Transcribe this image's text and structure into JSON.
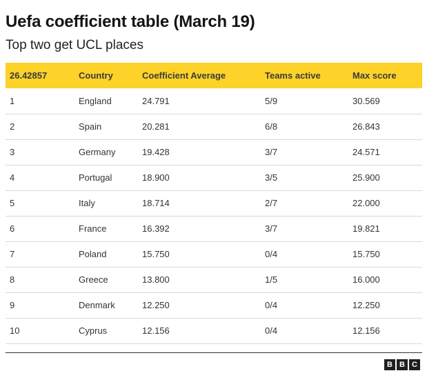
{
  "title": "Uefa coefficient table (March 19)",
  "subtitle": "Top two get UCL places",
  "brand": {
    "logo_letters": [
      "B",
      "B",
      "C"
    ],
    "logo_color": "#1f1f1f"
  },
  "colors": {
    "header_bg": "#fdd229",
    "row_divider": "#d9d9d9",
    "bottom_rule": "#333333"
  },
  "chart_data": {
    "type": "table",
    "title": "Uefa coefficient table (March 19)",
    "subtitle": "Top two get UCL places",
    "columns": [
      "26.42857",
      "Country",
      "Coefficient Average",
      "Teams active",
      "Max score"
    ],
    "rows": [
      [
        "1",
        "England",
        "24.791",
        "5/9",
        "30.569"
      ],
      [
        "2",
        "Spain",
        "20.281",
        "6/8",
        "26.843"
      ],
      [
        "3",
        "Germany",
        "19.428",
        "3/7",
        "24.571"
      ],
      [
        "4",
        "Portugal",
        "18.900",
        "3/5",
        "25.900"
      ],
      [
        "5",
        "Italy",
        "18.714",
        "2/7",
        "22.000"
      ],
      [
        "6",
        "France",
        "16.392",
        "3/7",
        "19.821"
      ],
      [
        "7",
        "Poland",
        "15.750",
        "0/4",
        "15.750"
      ],
      [
        "8",
        "Greece",
        "13.800",
        "1/5",
        "16.000"
      ],
      [
        "9",
        "Denmark",
        "12.250",
        "0/4",
        "12.250"
      ],
      [
        "10",
        "Cyprus",
        "12.156",
        "0/4",
        "12.156"
      ]
    ]
  }
}
